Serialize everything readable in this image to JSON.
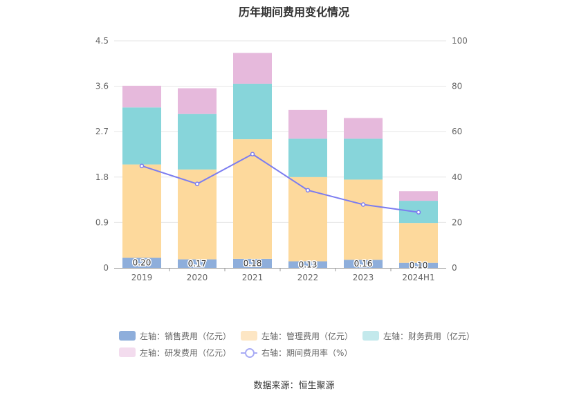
{
  "chart_data": {
    "type": "bar",
    "title": "历年期间费用变化情况",
    "categories": [
      "2019",
      "2020",
      "2021",
      "2022",
      "2023",
      "2024H1"
    ],
    "series": [
      {
        "name": "左轴：销售费用（亿元）",
        "axis": "left",
        "color": "#8eaedb",
        "values": [
          0.2,
          0.17,
          0.18,
          0.13,
          0.16,
          0.1
        ],
        "labels": [
          "0.20",
          "0.17",
          "0.18",
          "0.13",
          "0.16",
          "0.10"
        ]
      },
      {
        "name": "左轴：管理费用（亿元）",
        "axis": "left",
        "color": "#fdd99c",
        "values": [
          1.85,
          1.78,
          2.37,
          1.67,
          1.59,
          0.79
        ]
      },
      {
        "name": "左轴：财务费用（亿元）",
        "axis": "left",
        "color": "#87d5da",
        "values": [
          1.13,
          1.1,
          1.1,
          0.76,
          0.81,
          0.44
        ]
      },
      {
        "name": "左轴：研发费用（亿元）",
        "axis": "left",
        "color": "#e6b9dc",
        "values": [
          0.43,
          0.51,
          0.61,
          0.57,
          0.41,
          0.19
        ]
      },
      {
        "name": "右轴：期间费用率（%）",
        "axis": "right",
        "type": "line",
        "color": "#7b7cf0",
        "values": [
          44.9,
          37.0,
          50.1,
          34.2,
          27.9,
          24.5
        ]
      }
    ],
    "y_left": {
      "min": 0,
      "max": 4.5,
      "ticks": [
        "0",
        "0.9",
        "1.8",
        "2.7",
        "3.6",
        "4.5"
      ]
    },
    "y_right": {
      "min": 0,
      "max": 100,
      "ticks": [
        "0",
        "20",
        "40",
        "60",
        "80",
        "100"
      ]
    },
    "grid": true,
    "legend_position": "bottom"
  },
  "source": "数据来源：恒生聚源"
}
